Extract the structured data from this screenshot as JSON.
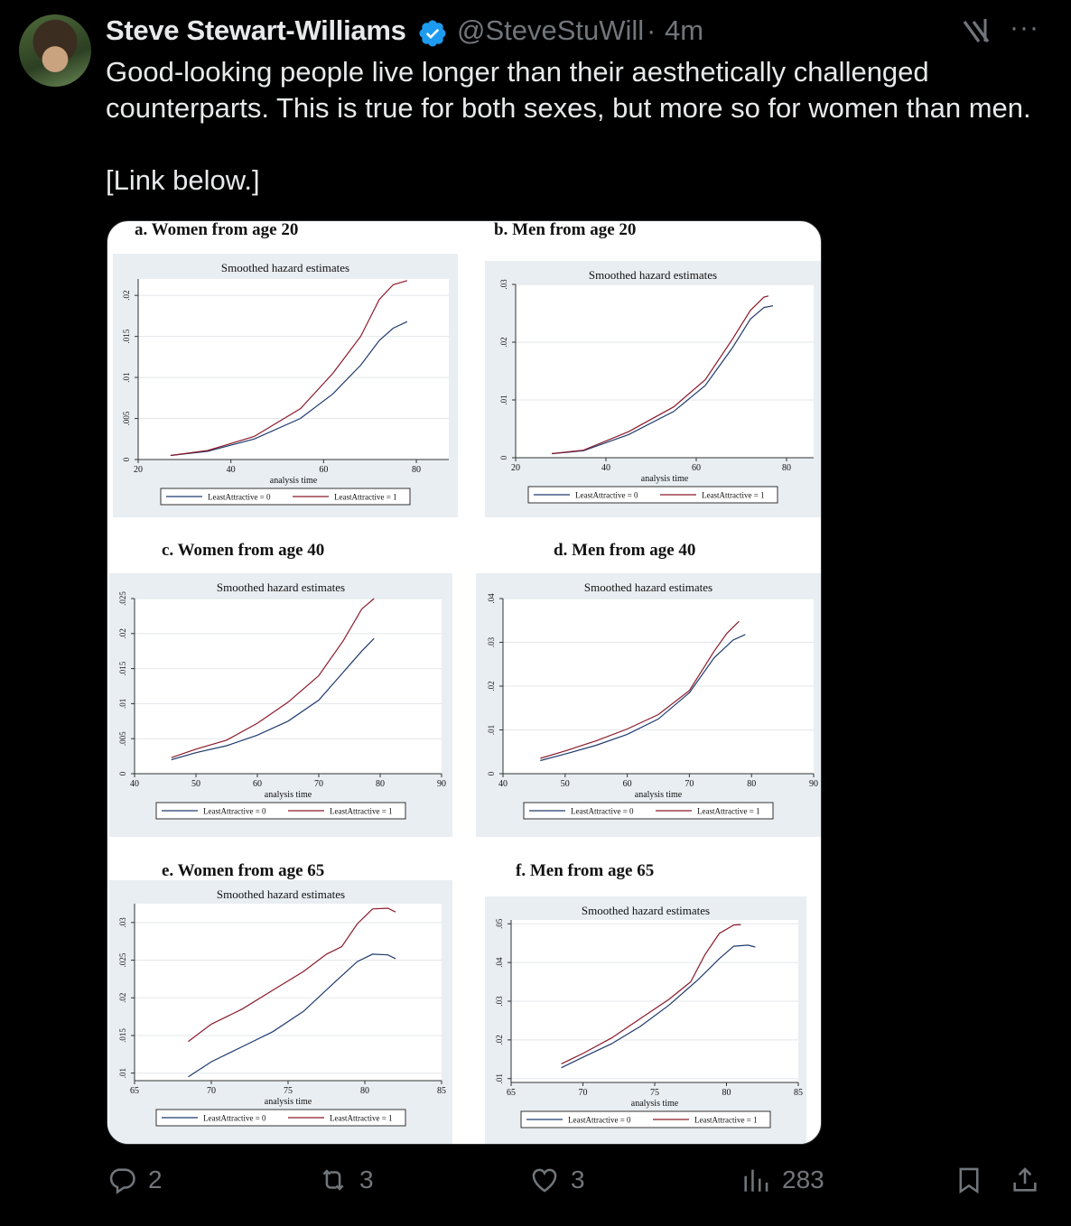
{
  "tweet": {
    "author_name": "Steve Stewart-Williams",
    "handle": "@SteveStuWill",
    "separator": "·",
    "time": "4m",
    "text_line1": "Good-looking people live longer than their aesthetically challenged counterparts. This is true for both sexes, but more so for women than men.",
    "text_line2": "[Link below.]",
    "more_label": "···"
  },
  "actions": {
    "replies": "2",
    "reposts": "3",
    "likes": "3",
    "views": "283"
  },
  "colors": {
    "background": "#000000",
    "text": "#e7e9ea",
    "muted": "#71767b",
    "verified": "#1d9bf0",
    "series0": "#1f3b6e",
    "series1": "#8b1a2b",
    "plot_panel": "#e9eef2"
  },
  "chart_data": [
    {
      "panel_title": "a.   Women from age 20",
      "type": "line",
      "title": "Smoothed hazard estimates",
      "xlabel": "analysis time",
      "ylabel": "",
      "xlim": [
        20,
        87
      ],
      "ylim": [
        0,
        0.022
      ],
      "xticks": [
        "20",
        "40",
        "60",
        "80"
      ],
      "yticks": [
        "0",
        ".005",
        ".01",
        ".015",
        ".02"
      ],
      "legend": "bottom",
      "series": [
        {
          "name": "LeastAttractive = 0",
          "x": [
            27,
            35,
            45,
            55,
            62,
            68,
            72,
            75,
            78
          ],
          "y": [
            0.0005,
            0.001,
            0.0025,
            0.005,
            0.008,
            0.0115,
            0.0145,
            0.016,
            0.0168
          ]
        },
        {
          "name": "LeastAttractive = 1",
          "x": [
            27,
            35,
            45,
            55,
            62,
            68,
            72,
            75,
            78
          ],
          "y": [
            0.0005,
            0.0011,
            0.0028,
            0.0062,
            0.0105,
            0.015,
            0.0195,
            0.0213,
            0.0218
          ]
        }
      ]
    },
    {
      "panel_title": "b.   Men from age 20",
      "type": "line",
      "title": "Smoothed hazard estimates",
      "xlabel": "analysis time",
      "ylabel": "",
      "xlim": [
        20,
        86
      ],
      "ylim": [
        0,
        0.03
      ],
      "xticks": [
        "20",
        "40",
        "60",
        "80"
      ],
      "yticks": [
        "0",
        ".01",
        ".02",
        ".03"
      ],
      "legend": "bottom",
      "series": [
        {
          "name": "LeastAttractive = 0",
          "x": [
            28,
            35,
            45,
            55,
            62,
            68,
            72,
            75,
            77
          ],
          "y": [
            0.0007,
            0.0012,
            0.004,
            0.008,
            0.0125,
            0.019,
            0.024,
            0.026,
            0.0263
          ]
        },
        {
          "name": "LeastAttractive = 1",
          "x": [
            28,
            35,
            45,
            55,
            62,
            68,
            72,
            75,
            76
          ],
          "y": [
            0.0007,
            0.0013,
            0.0045,
            0.0088,
            0.0135,
            0.0205,
            0.0255,
            0.0278,
            0.028
          ]
        }
      ]
    },
    {
      "panel_title": "c.  Women from age 40",
      "type": "line",
      "title": "Smoothed hazard estimates",
      "xlabel": "analysis time",
      "ylabel": "",
      "xlim": [
        40,
        90
      ],
      "ylim": [
        0,
        0.025
      ],
      "xticks": [
        "40",
        "50",
        "60",
        "70",
        "80",
        "90"
      ],
      "yticks": [
        "0",
        ".005",
        ".01",
        ".015",
        ".02",
        ".025"
      ],
      "legend": "bottom",
      "series": [
        {
          "name": "LeastAttractive = 0",
          "x": [
            46,
            50,
            55,
            60,
            65,
            70,
            74,
            77,
            79
          ],
          "y": [
            0.002,
            0.003,
            0.004,
            0.0055,
            0.0075,
            0.0105,
            0.0145,
            0.0175,
            0.0193
          ]
        },
        {
          "name": "LeastAttractive = 1",
          "x": [
            46,
            50,
            55,
            60,
            65,
            70,
            74,
            77,
            79
          ],
          "y": [
            0.0023,
            0.0035,
            0.0048,
            0.0072,
            0.0102,
            0.014,
            0.019,
            0.0235,
            0.025
          ]
        }
      ]
    },
    {
      "panel_title": "d. Men from age 40",
      "type": "line",
      "title": "Smoothed hazard estimates",
      "xlabel": "analysis time",
      "ylabel": "",
      "xlim": [
        40,
        90
      ],
      "ylim": [
        0,
        0.04
      ],
      "xticks": [
        "40",
        "50",
        "60",
        "70",
        "80",
        "90"
      ],
      "yticks": [
        "0",
        ".01",
        ".02",
        ".03",
        ".04"
      ],
      "legend": "bottom",
      "series": [
        {
          "name": "LeastAttractive = 0",
          "x": [
            46,
            50,
            55,
            60,
            65,
            70,
            74,
            77,
            79
          ],
          "y": [
            0.003,
            0.0045,
            0.0065,
            0.009,
            0.0125,
            0.0185,
            0.0265,
            0.0305,
            0.0318
          ]
        },
        {
          "name": "LeastAttractive = 1",
          "x": [
            46,
            50,
            55,
            60,
            65,
            70,
            74,
            76,
            78
          ],
          "y": [
            0.0035,
            0.0052,
            0.0075,
            0.0102,
            0.0135,
            0.019,
            0.028,
            0.032,
            0.0348
          ]
        }
      ]
    },
    {
      "panel_title": "e. Women from age 65",
      "type": "line",
      "title": "Smoothed hazard estimates",
      "xlabel": "analysis time",
      "ylabel": "",
      "xlim": [
        65,
        85
      ],
      "ylim": [
        0.009,
        0.0325
      ],
      "xticks": [
        "65",
        "70",
        "75",
        "80",
        "85"
      ],
      "yticks": [
        ".01",
        ".015",
        ".02",
        ".025",
        ".03"
      ],
      "legend": "bottom",
      "series": [
        {
          "name": "LeastAttractive = 0",
          "x": [
            68.5,
            70,
            72,
            74,
            76,
            78,
            79.5,
            80.5,
            81.5,
            82
          ],
          "y": [
            0.0095,
            0.0115,
            0.0135,
            0.0155,
            0.0182,
            0.022,
            0.0248,
            0.0258,
            0.0257,
            0.0252
          ]
        },
        {
          "name": "LeastAttractive = 1",
          "x": [
            68.5,
            70,
            72,
            74,
            76,
            77.5,
            78.5,
            79.5,
            80.5,
            81.5,
            82
          ],
          "y": [
            0.0142,
            0.0165,
            0.0185,
            0.021,
            0.0235,
            0.0258,
            0.0268,
            0.0298,
            0.0318,
            0.0319,
            0.0314
          ]
        }
      ]
    },
    {
      "panel_title": "f. Men from age 65",
      "type": "line",
      "title": "Smoothed hazard estimates",
      "xlabel": "analysis time",
      "ylabel": "",
      "xlim": [
        65,
        85
      ],
      "ylim": [
        0.009,
        0.051
      ],
      "xticks": [
        "65",
        "70",
        "75",
        "80",
        "85"
      ],
      "yticks": [
        ".01",
        ".02",
        ".03",
        ".04",
        ".05"
      ],
      "legend": "bottom",
      "series": [
        {
          "name": "LeastAttractive = 0",
          "x": [
            68.5,
            70,
            72,
            74,
            76,
            78,
            79.5,
            80.5,
            81.5,
            82
          ],
          "y": [
            0.0128,
            0.0155,
            0.019,
            0.0235,
            0.029,
            0.0355,
            0.041,
            0.0442,
            0.0445,
            0.044
          ]
        },
        {
          "name": "LeastAttractive = 1",
          "x": [
            68.5,
            70,
            72,
            74,
            76,
            77.5,
            78.5,
            79.5,
            80.5,
            81
          ],
          "y": [
            0.0138,
            0.0165,
            0.0205,
            0.0255,
            0.0305,
            0.035,
            0.042,
            0.0475,
            0.0497,
            0.0498
          ]
        }
      ]
    }
  ]
}
